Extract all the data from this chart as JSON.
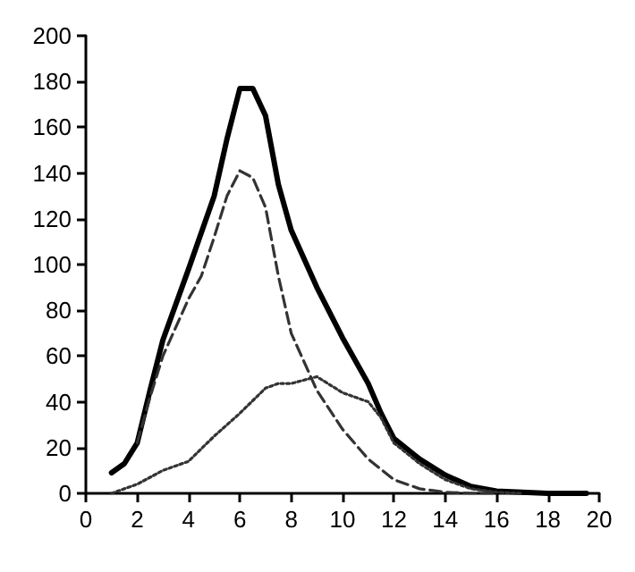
{
  "chart_data": {
    "type": "line",
    "xlim": [
      0,
      20
    ],
    "xticks": [
      0,
      2,
      4,
      6,
      8,
      10,
      12,
      14,
      16,
      18,
      20
    ],
    "ylim": [
      0,
      200
    ],
    "yticks": [
      0,
      20,
      40,
      60,
      80,
      100,
      120,
      140,
      160,
      180,
      200
    ],
    "marker": "none",
    "series": [
      {
        "color": "#000000",
        "line_style": "solid",
        "x": [
          1,
          1.5,
          2,
          2.5,
          3,
          4,
          5,
          5.5,
          6,
          6.5,
          7,
          7.5,
          8,
          9,
          10,
          11,
          11.5,
          12,
          13,
          14,
          15,
          16,
          17,
          18,
          19,
          19.5
        ],
        "values": [
          9,
          13,
          22,
          45,
          67,
          98,
          130,
          155,
          177,
          177,
          165,
          135,
          115,
          90,
          68,
          48,
          35,
          24,
          15,
          8,
          3,
          1,
          0.5,
          0,
          0,
          0
        ]
      },
      {
        "color": "#333333",
        "line_style": "dashed",
        "x": [
          2,
          2.5,
          3,
          4,
          4.5,
          5,
          5.5,
          6,
          6.5,
          7,
          7.5,
          8,
          9,
          10,
          11,
          12,
          13,
          14,
          15,
          16
        ],
        "values": [
          22,
          42,
          60,
          85,
          95,
          112,
          130,
          141,
          138,
          125,
          95,
          70,
          45,
          28,
          15,
          6,
          2,
          0.5,
          0,
          0
        ]
      },
      {
        "color": "#333333",
        "line_style": "dotted",
        "x": [
          1,
          2,
          3,
          4,
          5,
          6,
          7,
          7.5,
          8,
          9,
          10,
          11,
          11.5,
          12,
          13,
          14,
          15,
          16,
          17
        ],
        "values": [
          0,
          4,
          10,
          14,
          25,
          35,
          46,
          48,
          48,
          51,
          44,
          40,
          33,
          22,
          13,
          6,
          2,
          0.5,
          0
        ]
      }
    ]
  }
}
